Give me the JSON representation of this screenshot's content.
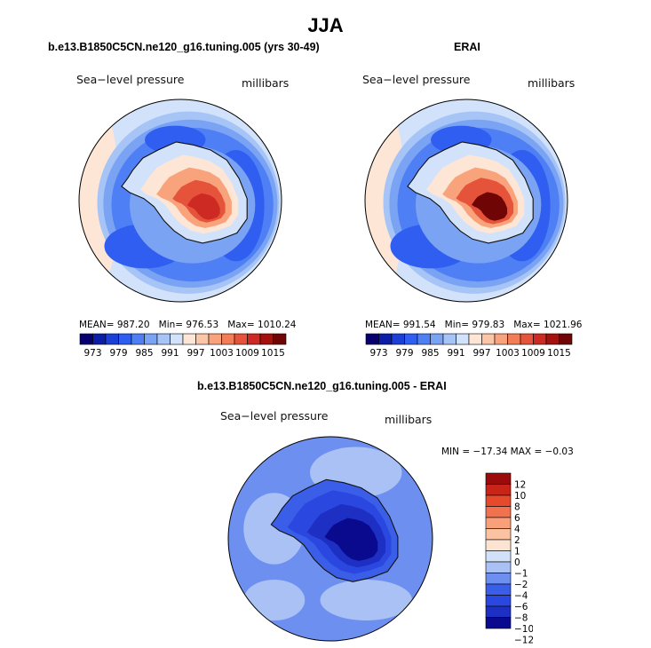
{
  "figure": {
    "title": "JJA"
  },
  "palette": {
    "seq": [
      "#08006e",
      "#0c1ea8",
      "#1c3fd6",
      "#2f5ef0",
      "#4f7ff4",
      "#7aa3f4",
      "#a6c4f6",
      "#d1e2fa",
      "#fde6d6",
      "#fbc6a8",
      "#f8a37c",
      "#f37d56",
      "#e5533a",
      "#cc2a22",
      "#a3120f",
      "#6f0505"
    ],
    "diff": [
      "#0a0a8f",
      "#1e2fc4",
      "#2a48e0",
      "#3b5ee8",
      "#6d8ff0",
      "#a9c1f5",
      "#d2e1fa",
      "#fde4d2",
      "#fbc3a2",
      "#f8a07a",
      "#f2714f",
      "#e54a2d",
      "#c92418",
      "#9c0b0b"
    ]
  },
  "chart_data": [
    {
      "type": "heatmap",
      "title": "b.e13.B1850C5CN.ne120_g16.tuning.005 (yrs 30-49)",
      "left_label": "Sea−level pressure",
      "right_label": "millibars",
      "stats": {
        "mean": "987.20",
        "min": "976.53",
        "max": "1010.24"
      },
      "stat_labels": {
        "mean": "MEAN=",
        "min": "Min=",
        "max": "Max="
      },
      "colorbar": {
        "levels": [
          "973",
          "979",
          "985",
          "991",
          "997",
          "1003",
          "1009",
          "1015"
        ]
      }
    },
    {
      "type": "heatmap",
      "title": "ERAI",
      "left_label": "Sea−level pressure",
      "right_label": "millibars",
      "stats": {
        "mean": "991.54",
        "min": "979.83",
        "max": "1021.96"
      },
      "stat_labels": {
        "mean": "MEAN=",
        "min": "Min=",
        "max": "Max="
      },
      "colorbar": {
        "levels": [
          "973",
          "979",
          "985",
          "991",
          "997",
          "1003",
          "1009",
          "1015"
        ]
      }
    },
    {
      "type": "heatmap",
      "title": "b.e13.B1850C5CN.ne120_g16.tuning.005 - ERAI",
      "left_label": "Sea−level pressure",
      "right_label": "millibars",
      "stats_text": "MIN = −17.34  MAX = −0.03",
      "colorbar": {
        "levels": [
          "12",
          "10",
          "8",
          "6",
          "4",
          "2",
          "1",
          "0",
          "−1",
          "−2",
          "−4",
          "−6",
          "−8",
          "−10",
          "−12"
        ]
      }
    }
  ]
}
